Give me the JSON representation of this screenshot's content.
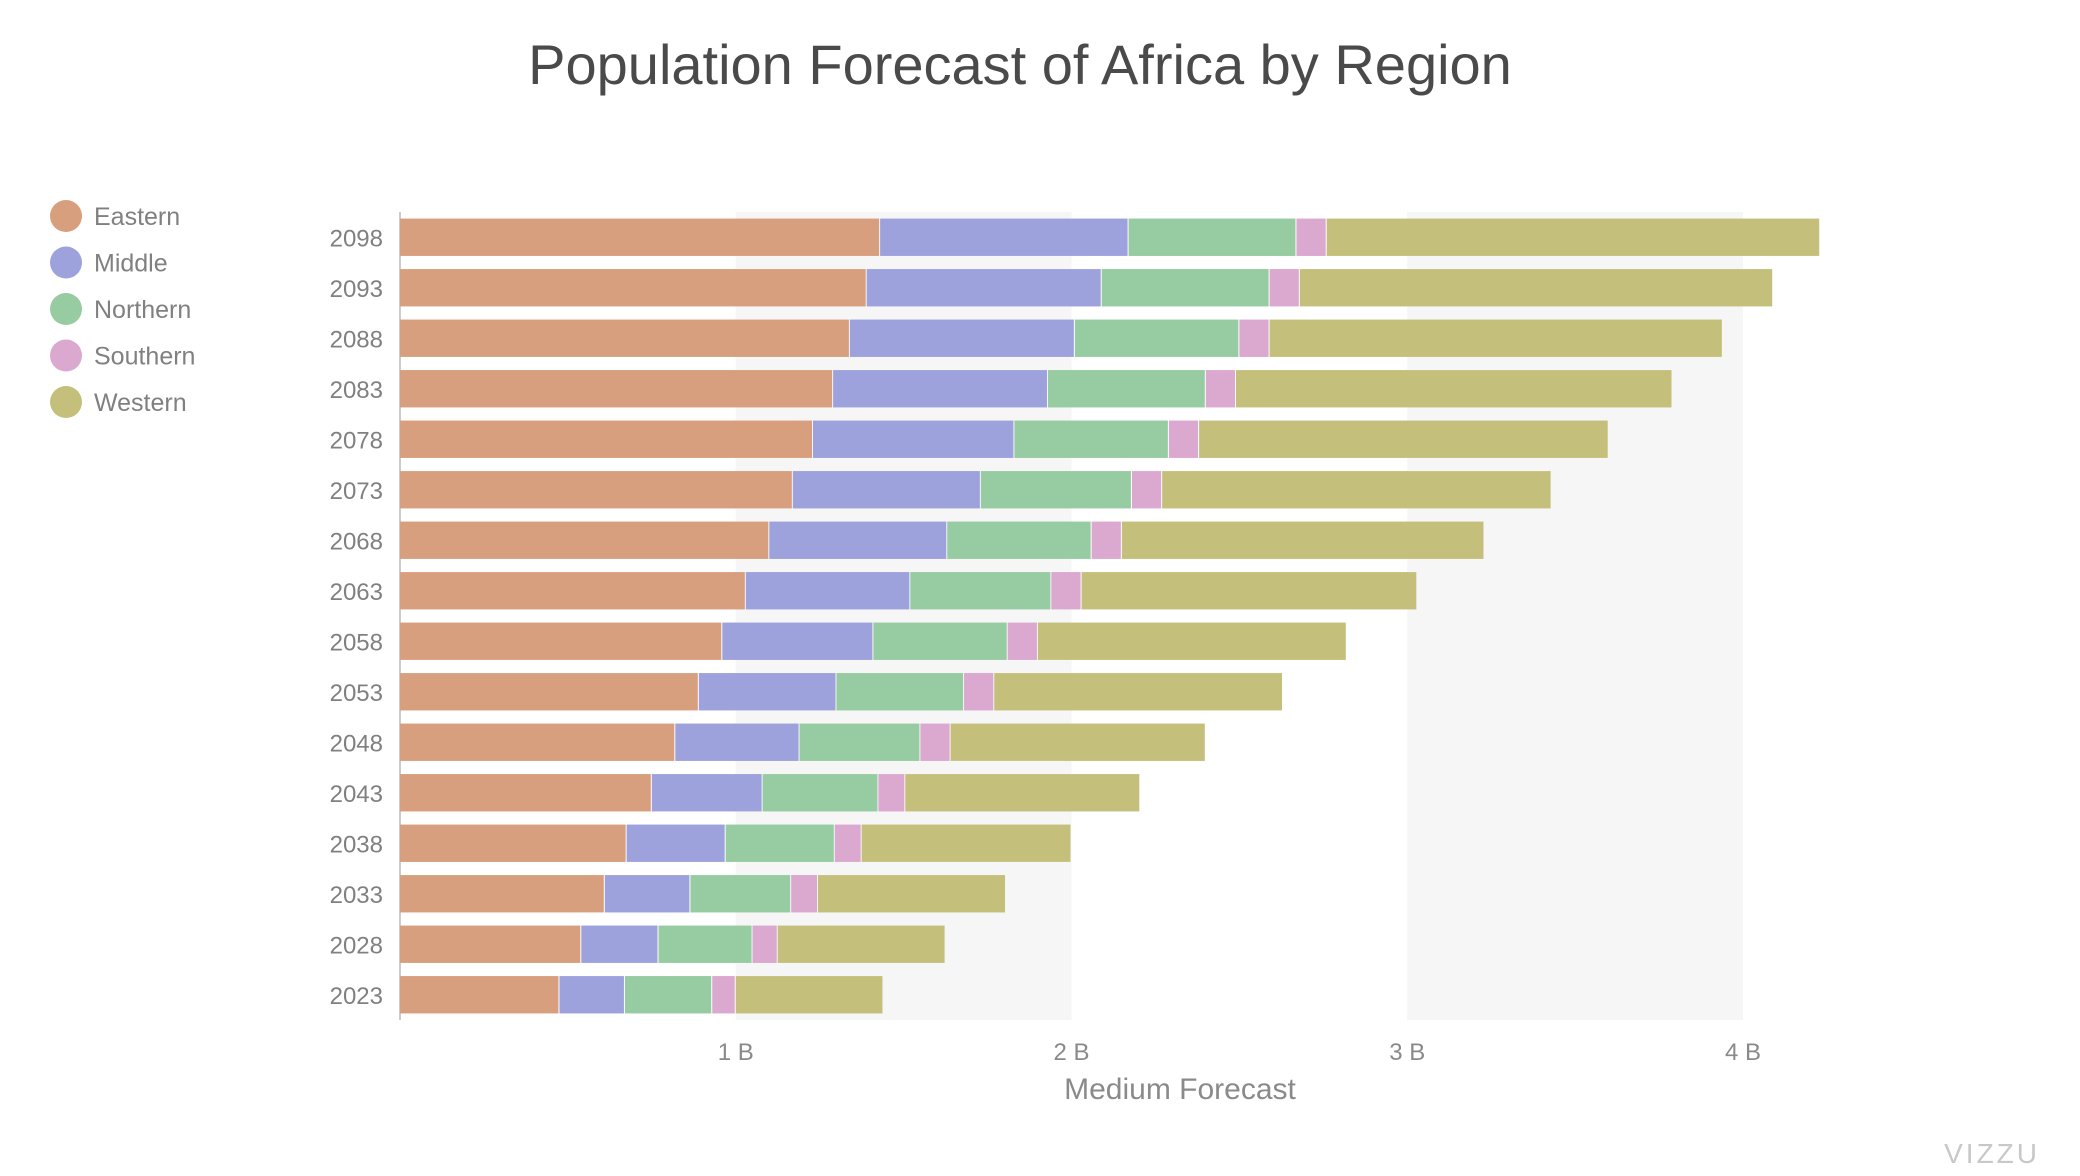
{
  "chart_data": {
    "type": "bar",
    "orientation": "horizontal",
    "stacked": true,
    "title": "Population Forecast of Africa by Region",
    "xlabel": "Medium Forecast",
    "ylabel": "",
    "xlim": [
      0,
      4.4
    ],
    "x_ticks": [
      {
        "value": 1,
        "label": "1 B"
      },
      {
        "value": 2,
        "label": "2 B"
      },
      {
        "value": 3,
        "label": "3 B"
      },
      {
        "value": 4,
        "label": "4 B"
      }
    ],
    "legend_position": "top-left",
    "categories": [
      "2098",
      "2093",
      "2088",
      "2083",
      "2078",
      "2073",
      "2068",
      "2063",
      "2058",
      "2053",
      "2048",
      "2043",
      "2038",
      "2033",
      "2028",
      "2023"
    ],
    "series": [
      {
        "name": "Eastern",
        "color": "#d89f7e",
        "values": [
          1.43,
          1.39,
          1.34,
          1.29,
          1.23,
          1.17,
          1.1,
          1.03,
          0.96,
          0.89,
          0.82,
          0.75,
          0.675,
          0.61,
          0.54,
          0.475
        ]
      },
      {
        "name": "Middle",
        "color": "#9ea2dc",
        "values": [
          0.74,
          0.7,
          0.67,
          0.64,
          0.6,
          0.56,
          0.53,
          0.49,
          0.45,
          0.41,
          0.37,
          0.33,
          0.295,
          0.255,
          0.23,
          0.195
        ]
      },
      {
        "name": "Northern",
        "color": "#97cba1",
        "values": [
          0.5,
          0.5,
          0.49,
          0.47,
          0.46,
          0.45,
          0.43,
          0.42,
          0.4,
          0.38,
          0.36,
          0.345,
          0.325,
          0.3,
          0.28,
          0.26
        ]
      },
      {
        "name": "Southern",
        "color": "#dba8cf",
        "values": [
          0.09,
          0.09,
          0.09,
          0.09,
          0.09,
          0.09,
          0.09,
          0.09,
          0.09,
          0.09,
          0.09,
          0.08,
          0.08,
          0.08,
          0.075,
          0.07
        ]
      },
      {
        "name": "Western",
        "color": "#c4c07c",
        "values": [
          1.47,
          1.41,
          1.35,
          1.3,
          1.22,
          1.16,
          1.08,
          1.0,
          0.92,
          0.86,
          0.76,
          0.7,
          0.625,
          0.56,
          0.5,
          0.44
        ]
      }
    ]
  },
  "watermark": "VIZZU"
}
